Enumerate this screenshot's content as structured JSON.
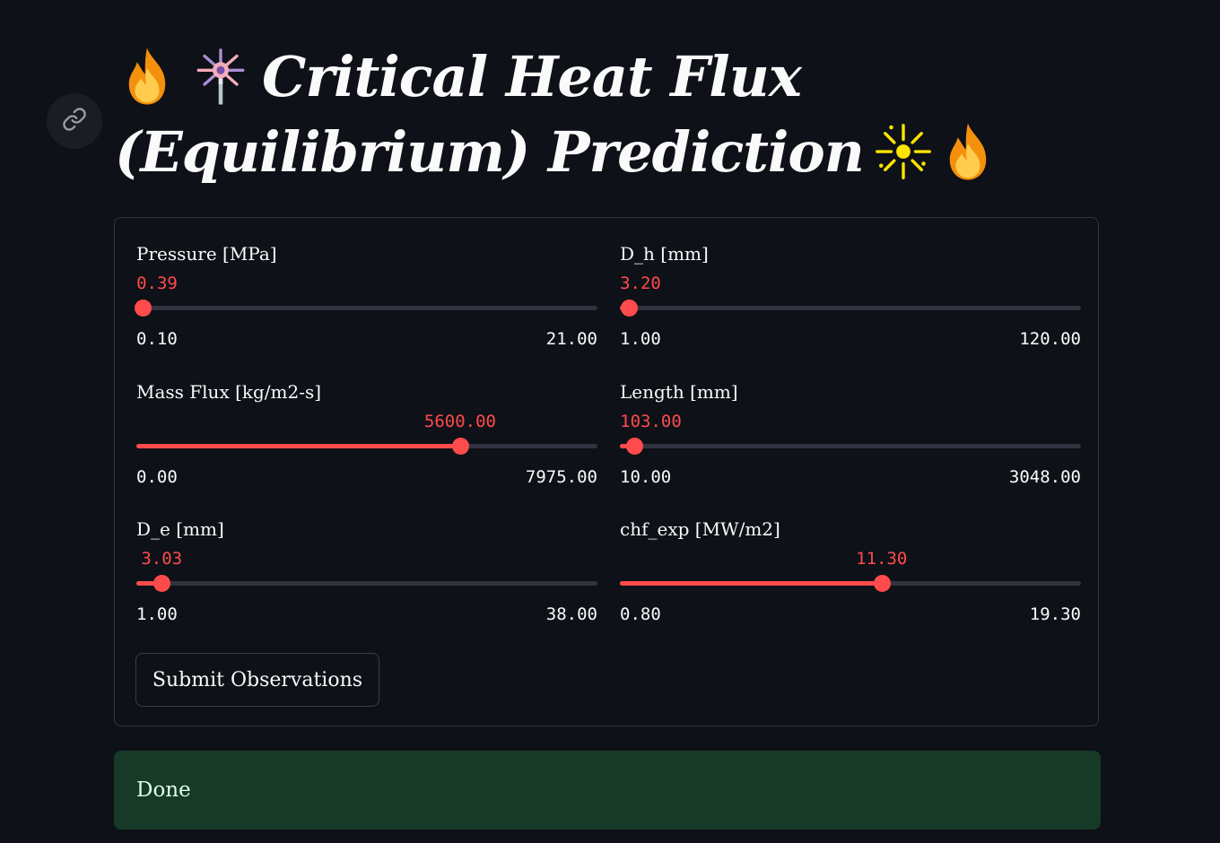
{
  "page": {
    "title": "Critical Heat Flux (Equilibrium) Prediction",
    "title_line1": "Critical Heat Flux",
    "title_line2": "(Equilibrium) Prediction",
    "title_icons": [
      "fire-icon",
      "firework-sparkler-icon",
      "sparkle-icon",
      "fire-icon"
    ],
    "anchor_icon": "link-icon"
  },
  "form": {
    "sliders": [
      {
        "label": "Pressure [MPa]",
        "value": "0.39",
        "min": "0.10",
        "max": "21.00",
        "fraction": 0.0139
      },
      {
        "label": "D_h [mm]",
        "value": "3.20",
        "min": "1.00",
        "max": "120.00",
        "fraction": 0.0185
      },
      {
        "label": "Mass Flux [kg/m2-s]",
        "value": "5600.00",
        "min": "0.00",
        "max": "7975.00",
        "fraction": 0.7022
      },
      {
        "label": "Length [mm]",
        "value": "103.00",
        "min": "10.00",
        "max": "3048.00",
        "fraction": 0.0306
      },
      {
        "label": "D_e [mm]",
        "value": "3.03",
        "min": "1.00",
        "max": "38.00",
        "fraction": 0.0549
      },
      {
        "label": "chf_exp [MW/m2]",
        "value": "11.30",
        "min": "0.80",
        "max": "19.30",
        "fraction": 0.5676
      }
    ],
    "submit_label": "Submit Observations"
  },
  "status": {
    "message": "Done"
  },
  "colors": {
    "background": "#0e1117",
    "accent": "#ff4b4b",
    "success_bg": "#173928",
    "success_text": "#dffde9"
  }
}
